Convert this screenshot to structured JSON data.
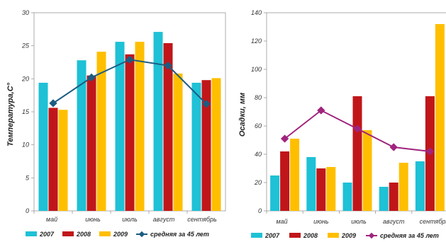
{
  "chart_data": [
    {
      "type": "bar",
      "ylabel": "Температура,С°",
      "ylim": [
        0,
        30
      ],
      "yticks": [
        "0",
        "5",
        "10",
        "15",
        "20",
        "25",
        "30"
      ],
      "categories": [
        "май",
        "июнь",
        "июль",
        "август",
        "сентябрь"
      ],
      "series": [
        {
          "name": "2007",
          "color": "#1ec1d6",
          "values": [
            19.4,
            22.8,
            25.6,
            27.1,
            19.4
          ]
        },
        {
          "name": "2008",
          "color": "#c0161a",
          "values": [
            15.6,
            20.5,
            23.7,
            25.4,
            19.8
          ]
        },
        {
          "name": "2009",
          "color": "#ffbf00",
          "values": [
            15.3,
            24.1,
            25.6,
            20.8,
            20.1
          ]
        }
      ],
      "line": {
        "name": "средняя за 45 лет",
        "color": "#1c5c82",
        "values": [
          16.3,
          20.2,
          22.9,
          22.0,
          16.2
        ]
      },
      "grid": false,
      "legend": "bottom"
    },
    {
      "type": "bar",
      "ylabel": "Осадки, мм",
      "ylim": [
        0,
        140
      ],
      "yticks": [
        "0",
        "20",
        "40",
        "60",
        "80",
        "100",
        "120",
        "140"
      ],
      "categories": [
        "май",
        "июнь",
        "июль",
        "август",
        "сентябрь"
      ],
      "series": [
        {
          "name": "2007",
          "color": "#1ec1d6",
          "values": [
            25,
            38,
            20,
            17,
            35
          ]
        },
        {
          "name": "2008",
          "color": "#c0161a",
          "values": [
            42,
            30,
            81,
            20,
            81
          ]
        },
        {
          "name": "2009",
          "color": "#ffbf00",
          "values": [
            51,
            31,
            57,
            34,
            132
          ]
        }
      ],
      "line": {
        "name": "средняя за 45 лет",
        "color": "#a0247e",
        "values": [
          51,
          71,
          58,
          45,
          42
        ]
      },
      "grid": false,
      "legend": "bottom"
    }
  ]
}
